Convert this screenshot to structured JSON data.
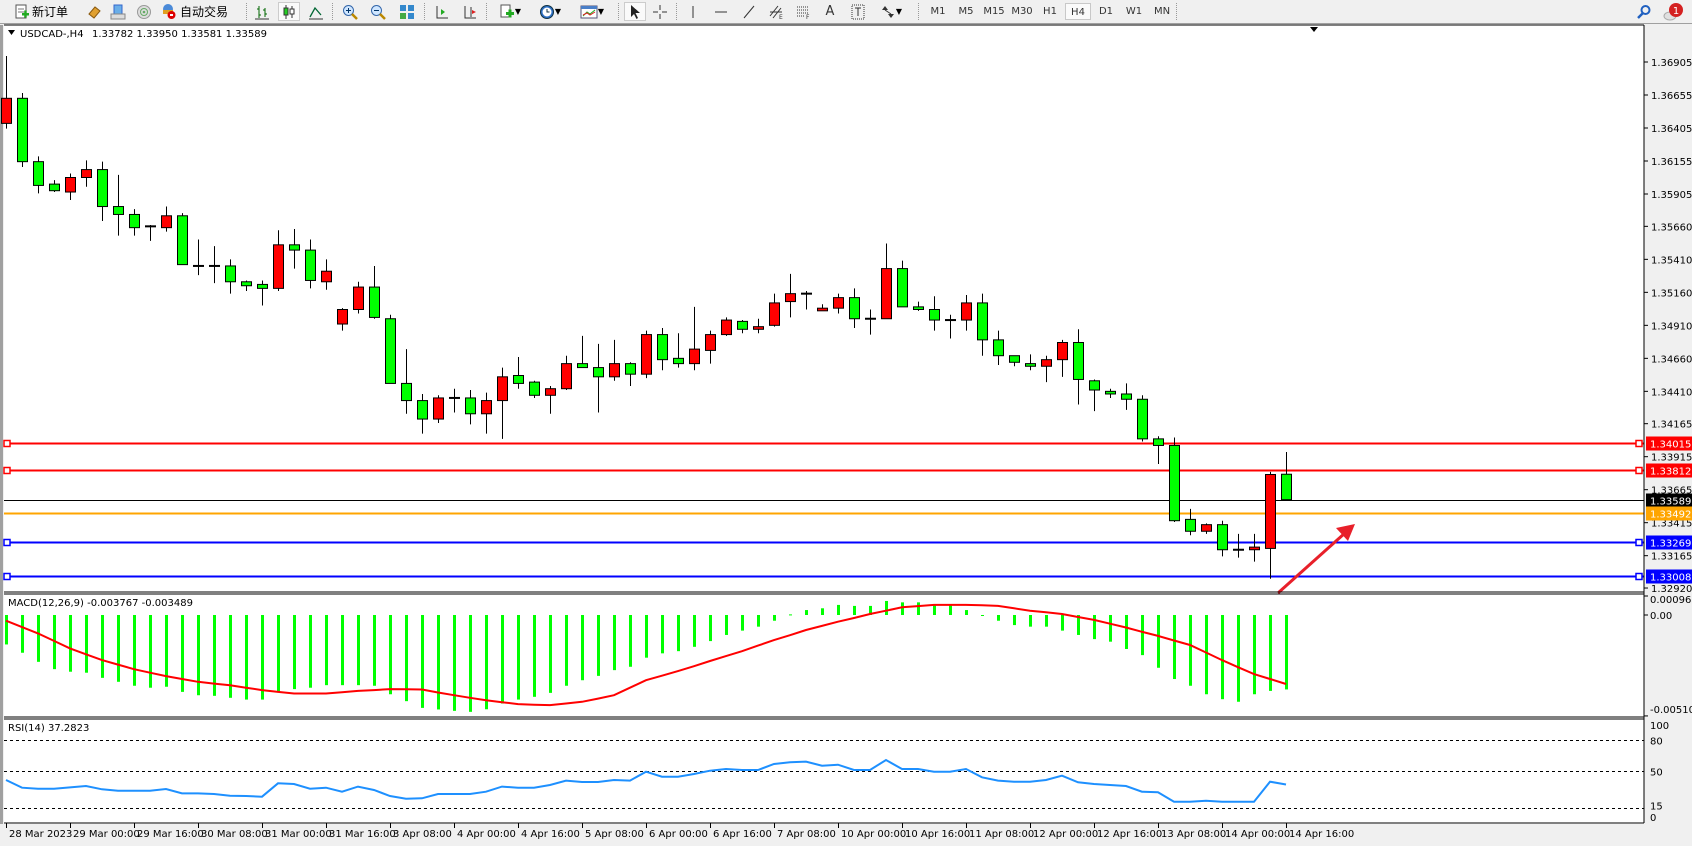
{
  "toolbar": {
    "new_order_label": "新订单",
    "auto_trading_label": "自动交易",
    "timeframes": [
      "M1",
      "M5",
      "M15",
      "M30",
      "H1",
      "H4",
      "D1",
      "W1",
      "MN"
    ],
    "active_timeframe": "H4",
    "notification_count": "1",
    "icons": [
      "new-order-icon",
      "market-watch-icon",
      "data-window-icon",
      "navigator-icon",
      "auto-trading-icon",
      "bar-chart-icon",
      "candlestick-icon",
      "line-chart-icon",
      "zoom-in-icon",
      "zoom-out-icon",
      "tile-windows-icon",
      "chart-shift-icon",
      "auto-scroll-icon",
      "indicators-icon",
      "periods-icon",
      "templates-icon",
      "cursor-icon",
      "crosshair-icon",
      "vertical-line-icon",
      "horizontal-line-icon",
      "trendline-icon",
      "equidistant-channel-icon",
      "fibonacci-icon",
      "text-icon",
      "text-label-icon",
      "arrows-icon",
      "search-icon",
      "notification-icon"
    ]
  },
  "chart_header": {
    "symbol_tf": "USDCAD-,H4",
    "ohlc_text": "1.33782 1.33950 1.33581 1.33589"
  },
  "colors": {
    "bull": "#FF0000",
    "bear": "#00FF00",
    "wick": "#000000",
    "macd_hist": "#00FF00",
    "macd_signal": "#FF0000",
    "rsi_line": "#1E90FF",
    "arrow": "#E8202A"
  },
  "chart_data": {
    "type": "candlestick",
    "symbol": "USDCAD-",
    "timeframe": "H4",
    "ohlc": [
      [
        1.3644,
        1.3695,
        1.364,
        1.3663
      ],
      [
        1.3663,
        1.3667,
        1.3611,
        1.3615
      ],
      [
        1.3615,
        1.3619,
        1.3591,
        1.3597
      ],
      [
        1.3598,
        1.3601,
        1.3592,
        1.3593
      ],
      [
        1.3592,
        1.3606,
        1.3586,
        1.3603
      ],
      [
        1.3603,
        1.3616,
        1.3596,
        1.3609
      ],
      [
        1.3609,
        1.3615,
        1.357,
        1.3581
      ],
      [
        1.3581,
        1.3605,
        1.3559,
        1.3575
      ],
      [
        1.3575,
        1.3579,
        1.3559,
        1.3565
      ],
      [
        1.3566,
        1.3567,
        1.3555,
        1.3566
      ],
      [
        1.3565,
        1.3581,
        1.3562,
        1.3574
      ],
      [
        1.3574,
        1.3576,
        1.3537,
        1.3537
      ],
      [
        1.3536,
        1.3556,
        1.3529,
        1.3536
      ],
      [
        1.3536,
        1.3551,
        1.3523,
        1.3536
      ],
      [
        1.3536,
        1.3541,
        1.3515,
        1.3524
      ],
      [
        1.3524,
        1.3525,
        1.3517,
        1.3521
      ],
      [
        1.3522,
        1.3525,
        1.3506,
        1.3519
      ],
      [
        1.3519,
        1.3563,
        1.3517,
        1.3552
      ],
      [
        1.3552,
        1.3564,
        1.3534,
        1.3548
      ],
      [
        1.3548,
        1.3556,
        1.3519,
        1.3525
      ],
      [
        1.3524,
        1.3541,
        1.3518,
        1.3532
      ],
      [
        1.3492,
        1.3504,
        1.3487,
        1.3503
      ],
      [
        1.3503,
        1.3524,
        1.35,
        1.352
      ],
      [
        1.352,
        1.3536,
        1.3496,
        1.3497
      ],
      [
        1.3496,
        1.3499,
        1.3447,
        1.3447
      ],
      [
        1.3447,
        1.3473,
        1.3424,
        1.3434
      ],
      [
        1.3434,
        1.3439,
        1.3409,
        1.342
      ],
      [
        1.342,
        1.3438,
        1.3417,
        1.3436
      ],
      [
        1.3436,
        1.3443,
        1.3425,
        1.3436
      ],
      [
        1.3436,
        1.3442,
        1.3416,
        1.3424
      ],
      [
        1.3424,
        1.344,
        1.3409,
        1.3434
      ],
      [
        1.3434,
        1.3459,
        1.3405,
        1.3452
      ],
      [
        1.3453,
        1.3467,
        1.3443,
        1.3447
      ],
      [
        1.3448,
        1.3449,
        1.3436,
        1.3438
      ],
      [
        1.3438,
        1.3445,
        1.3424,
        1.3443
      ],
      [
        1.3443,
        1.3468,
        1.3442,
        1.3462
      ],
      [
        1.3462,
        1.3483,
        1.3459,
        1.3459
      ],
      [
        1.3459,
        1.3477,
        1.3425,
        1.3452
      ],
      [
        1.3452,
        1.348,
        1.3449,
        1.3462
      ],
      [
        1.3462,
        1.3463,
        1.3445,
        1.3454
      ],
      [
        1.3454,
        1.3487,
        1.3451,
        1.3484
      ],
      [
        1.3484,
        1.3489,
        1.3457,
        1.3465
      ],
      [
        1.3466,
        1.3485,
        1.3459,
        1.3462
      ],
      [
        1.3462,
        1.3505,
        1.3457,
        1.3473
      ],
      [
        1.3472,
        1.3487,
        1.3462,
        1.3484
      ],
      [
        1.3484,
        1.3497,
        1.3483,
        1.3495
      ],
      [
        1.3494,
        1.3495,
        1.3485,
        1.3488
      ],
      [
        1.3488,
        1.3496,
        1.3485,
        1.349
      ],
      [
        1.3491,
        1.3515,
        1.349,
        1.3508
      ],
      [
        1.3509,
        1.353,
        1.3497,
        1.3515
      ],
      [
        1.3515,
        1.3517,
        1.3503,
        1.3515
      ],
      [
        1.3502,
        1.3507,
        1.3502,
        1.3504
      ],
      [
        1.3504,
        1.3515,
        1.35,
        1.3512
      ],
      [
        1.3512,
        1.3519,
        1.3489,
        1.3496
      ],
      [
        1.3496,
        1.3503,
        1.3484,
        1.3496
      ],
      [
        1.3496,
        1.3553,
        1.3496,
        1.3534
      ],
      [
        1.3534,
        1.354,
        1.3505,
        1.3505
      ],
      [
        1.3505,
        1.3509,
        1.3502,
        1.3503
      ],
      [
        1.3503,
        1.3513,
        1.3487,
        1.3495
      ],
      [
        1.3495,
        1.3499,
        1.3481,
        1.3495
      ],
      [
        1.3495,
        1.3514,
        1.3487,
        1.3508
      ],
      [
        1.3508,
        1.3515,
        1.3468,
        1.348
      ],
      [
        1.348,
        1.3487,
        1.3461,
        1.3468
      ],
      [
        1.3468,
        1.3468,
        1.346,
        1.3463
      ],
      [
        1.3462,
        1.3469,
        1.3457,
        1.346
      ],
      [
        1.346,
        1.3468,
        1.3448,
        1.3465
      ],
      [
        1.3465,
        1.348,
        1.3452,
        1.3478
      ],
      [
        1.3478,
        1.3488,
        1.3431,
        1.345
      ],
      [
        1.3449,
        1.345,
        1.3426,
        1.3442
      ],
      [
        1.3441,
        1.3443,
        1.3436,
        1.3439
      ],
      [
        1.3439,
        1.3447,
        1.3427,
        1.3435
      ],
      [
        1.3435,
        1.3438,
        1.3403,
        1.3405
      ],
      [
        1.3405,
        1.3407,
        1.3386,
        1.34
      ],
      [
        1.34,
        1.3406,
        1.3342,
        1.3343
      ],
      [
        1.3344,
        1.3352,
        1.3332,
        1.3335
      ],
      [
        1.3335,
        1.3341,
        1.3333,
        1.334
      ],
      [
        1.334,
        1.3343,
        1.3316,
        1.3321
      ],
      [
        1.3321,
        1.3333,
        1.3315,
        1.3321
      ],
      [
        1.3321,
        1.3333,
        1.3312,
        1.3323
      ],
      [
        1.3322,
        1.338,
        1.3299,
        1.3378
      ],
      [
        1.33782,
        1.3395,
        1.33581,
        1.33589
      ]
    ],
    "x_labels": [
      "28 Mar 2023",
      "29 Mar 00:00",
      "29 Mar 16:00",
      "30 Mar 08:00",
      "31 Mar 00:00",
      "31 Mar 16:00",
      "3 Apr 08:00",
      "4 Apr 00:00",
      "4 Apr 16:00",
      "5 Apr 08:00",
      "6 Apr 00:00",
      "6 Apr 16:00",
      "7 Apr 08:00",
      "10 Apr 00:00",
      "10 Apr 16:00",
      "11 Apr 08:00",
      "12 Apr 00:00",
      "12 Apr 16:00",
      "13 Apr 08:00",
      "14 Apr 00:00",
      "14 Apr 16:00"
    ],
    "price_ticks": [
      "1.36905",
      "1.36655",
      "1.36405",
      "1.36155",
      "1.35905",
      "1.35660",
      "1.35410",
      "1.35160",
      "1.34910",
      "1.34660",
      "1.34410",
      "1.34165",
      "1.33915",
      "1.33665",
      "1.33415",
      "1.33165",
      "1.32920"
    ],
    "hlines": [
      {
        "price": 1.34015,
        "label": "1.34015",
        "color": "#FF0000",
        "type": "resistance"
      },
      {
        "price": 1.33812,
        "label": "1.33812",
        "color": "#FF0000",
        "type": "resistance"
      },
      {
        "price": 1.33589,
        "label": "1.33589",
        "color": "#000000",
        "type": "bid"
      },
      {
        "price": 1.33492,
        "label": "1.33492",
        "color": "#FFA500",
        "type": "level"
      },
      {
        "price": 1.33269,
        "label": "1.33269",
        "color": "#0000FF",
        "type": "support"
      },
      {
        "price": 1.33008,
        "label": "1.33008",
        "color": "#0000FF",
        "type": "support"
      }
    ],
    "macd": {
      "label": "MACD(12,26,9) -0.003767 -0.003489",
      "axis_labels": [
        "0.000962",
        "0.00",
        "-0.005107"
      ],
      "range": [
        -0.005107,
        0.000962
      ],
      "histogram": [
        -0.00149,
        -0.00191,
        -0.00237,
        -0.00274,
        -0.00287,
        -0.00292,
        -0.00318,
        -0.00338,
        -0.00358,
        -0.00368,
        -0.00363,
        -0.00389,
        -0.00406,
        -0.00409,
        -0.00419,
        -0.00428,
        -0.00428,
        -0.00389,
        -0.00375,
        -0.00368,
        -0.00355,
        -0.00355,
        -0.00355,
        -0.00358,
        -0.00401,
        -0.00436,
        -0.0047,
        -0.00478,
        -0.00485,
        -0.0049,
        -0.00477,
        -0.00448,
        -0.00428,
        -0.00414,
        -0.00394,
        -0.00358,
        -0.0033,
        -0.00308,
        -0.00279,
        -0.00262,
        -0.00216,
        -0.00194,
        -0.00183,
        -0.00161,
        -0.00132,
        -0.00101,
        -0.00079,
        -0.00059,
        -0.00029,
        3e-05,
        0.00025,
        0.00034,
        0.00051,
        0.00046,
        0.00046,
        0.00071,
        0.00064,
        0.00064,
        0.00051,
        0.00051,
        0.00025,
        -3e-05,
        -0.00029,
        -0.00051,
        -0.00059,
        -0.00059,
        -0.00079,
        -0.00101,
        -0.00122,
        -0.00135,
        -0.00172,
        -0.00203,
        -0.00267,
        -0.00324,
        -0.00358,
        -0.00401,
        -0.00426,
        -0.00439,
        -0.00401,
        -0.00384,
        -0.003767
      ],
      "signal": [
        -0.00029,
        -0.00061,
        -0.00093,
        -0.00131,
        -0.00169,
        -0.00199,
        -0.00228,
        -0.00251,
        -0.00274,
        -0.00292,
        -0.00309,
        -0.00324,
        -0.00338,
        -0.00347,
        -0.00355,
        -0.00368,
        -0.0038,
        -0.00389,
        -0.00397,
        -0.00397,
        -0.00397,
        -0.00391,
        -0.00384,
        -0.0038,
        -0.00375,
        -0.00376,
        -0.00377,
        -0.00392,
        -0.00406,
        -0.00419,
        -0.00431,
        -0.00441,
        -0.00451,
        -0.00454,
        -0.00456,
        -0.00448,
        -0.00439,
        -0.00423,
        -0.00406,
        -0.00368,
        -0.0033,
        -0.00307,
        -0.00284,
        -0.00259,
        -0.00233,
        -0.00208,
        -0.00183,
        -0.00155,
        -0.00127,
        -0.00102,
        -0.00076,
        -0.00055,
        -0.00034,
        -0.00015,
        5e-05,
        0.00022,
        0.00039,
        0.00045,
        0.00051,
        0.00051,
        0.00051,
        0.00049,
        0.00046,
        0.00034,
        0.00022,
        0.00014,
        5e-05,
        -0.0001,
        -0.00025,
        -0.00044,
        -0.00063,
        -0.00085,
        -0.00106,
        -0.00129,
        -0.00152,
        -0.0019,
        -0.00228,
        -0.00264,
        -0.00299,
        -0.00324,
        -0.003489
      ]
    },
    "rsi": {
      "label": "RSI(14) 37.2823",
      "axis_labels": [
        "100",
        "80",
        "50",
        "15",
        "0"
      ],
      "levels": [
        80,
        50,
        15
      ],
      "range": [
        0,
        100
      ],
      "values": [
        41.6,
        34.2,
        33.2,
        33.2,
        34.5,
        35.8,
        32.6,
        31.3,
        31.3,
        31.3,
        32.9,
        28.7,
        28.7,
        28.1,
        26.4,
        26.1,
        25.5,
        38.4,
        37.8,
        33.2,
        34.2,
        30.3,
        35.2,
        31.9,
        26.1,
        23.5,
        23.9,
        28.1,
        28.1,
        28.1,
        30.3,
        35.2,
        34.2,
        34.2,
        36.8,
        41.0,
        39.7,
        39.7,
        41.6,
        41.0,
        49.7,
        44.8,
        44.8,
        47.4,
        50.6,
        52.3,
        51.3,
        51.3,
        57.1,
        58.8,
        59.4,
        55.5,
        56.4,
        51.3,
        51.3,
        61.0,
        52.3,
        52.3,
        49.7,
        49.7,
        52.3,
        44.2,
        41.0,
        40.0,
        40.0,
        41.6,
        45.8,
        39.4,
        37.8,
        36.8,
        35.8,
        30.3,
        29.7,
        20.6,
        20.6,
        21.6,
        20.6,
        20.6,
        20.6,
        40.0,
        37.2823
      ]
    },
    "annotations": [
      {
        "type": "arrow",
        "direction": "up-right",
        "color": "#E8202A"
      }
    ]
  }
}
